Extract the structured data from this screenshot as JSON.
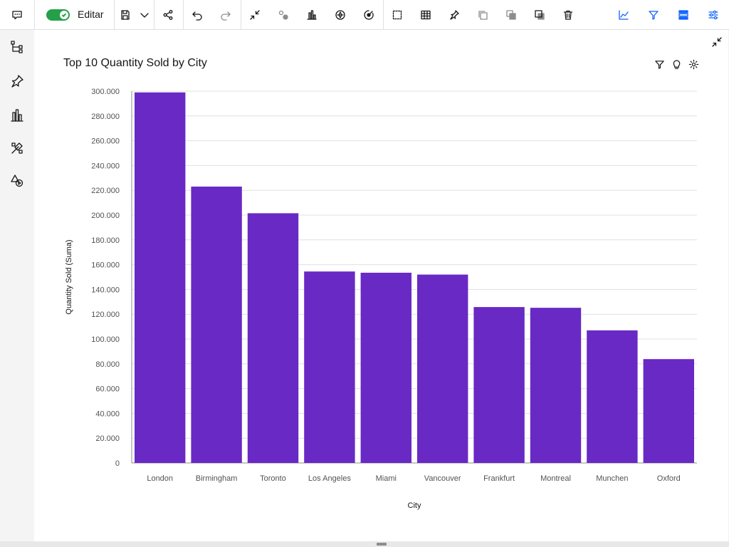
{
  "toolbar": {
    "edit_label": "Editar",
    "edit_on": true,
    "items": [
      {
        "name": "comment-icon"
      },
      {
        "name": "save-icon"
      },
      {
        "name": "share-icon"
      },
      {
        "name": "undo-icon"
      },
      {
        "name": "redo-icon"
      },
      {
        "name": "collapse-icon"
      },
      {
        "name": "relationship-icon"
      },
      {
        "name": "chart-icon"
      },
      {
        "name": "navigate-icon"
      },
      {
        "name": "filter-target-icon"
      },
      {
        "name": "select-area-icon"
      },
      {
        "name": "table-icon"
      },
      {
        "name": "pin-icon"
      },
      {
        "name": "copy-icon"
      },
      {
        "name": "bring-forward-icon"
      },
      {
        "name": "send-backward-icon"
      },
      {
        "name": "delete-icon"
      },
      {
        "name": "line-chart-icon"
      },
      {
        "name": "filter-icon"
      },
      {
        "name": "layers-icon"
      },
      {
        "name": "settings-sliders-icon"
      }
    ]
  },
  "sidebar": {
    "items": [
      {
        "name": "data-tree-icon"
      },
      {
        "name": "pin-icon"
      },
      {
        "name": "visualizations-icon"
      },
      {
        "name": "assemble-icon"
      },
      {
        "name": "shapes-media-icon"
      }
    ]
  },
  "widget": {
    "title": "Top 10 Quantity Sold by City"
  },
  "chart_data": {
    "type": "bar",
    "title": "Top 10 Quantity Sold by City",
    "xlabel": "City",
    "ylabel": "Quantity Sold (Suma)",
    "categories": [
      "London",
      "Birmingham",
      "Toronto",
      "Los Angeles",
      "Miami",
      "Vancouver",
      "Frankfurt",
      "Montreal",
      "Munchen",
      "Oxford"
    ],
    "values": [
      299000,
      223000,
      201500,
      154500,
      153500,
      152000,
      125800,
      125200,
      107000,
      83800
    ],
    "ylim": [
      0,
      300000
    ],
    "yticks": [
      0,
      20000,
      40000,
      60000,
      80000,
      100000,
      120000,
      140000,
      160000,
      180000,
      200000,
      220000,
      240000,
      260000,
      280000,
      300000
    ],
    "ytick_labels": [
      "0",
      "20.000",
      "40.000",
      "60.000",
      "80.000",
      "100.000",
      "120.000",
      "140.000",
      "160.000",
      "180.000",
      "200.000",
      "220.000",
      "240.000",
      "260.000",
      "280.000",
      "300.000"
    ],
    "grid": true,
    "bar_color": "#6929c4"
  }
}
